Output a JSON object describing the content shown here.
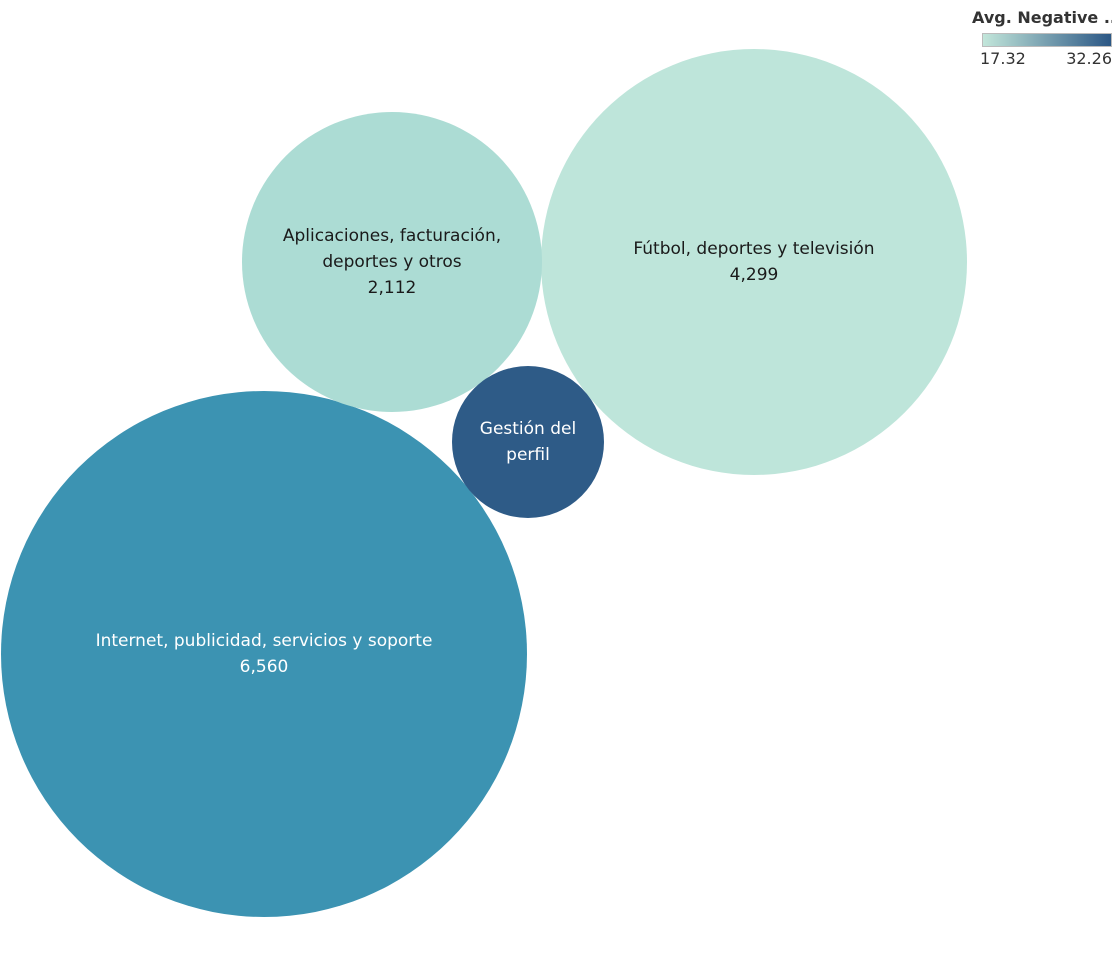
{
  "legend": {
    "title": "Avg. Negative ..",
    "min_label": "17.32",
    "max_label": "32.26",
    "min_color": "#c2e6da",
    "max_color": "#2b5785"
  },
  "chart_data": {
    "type": "bubble",
    "color_measure": "Avg. Negative ..",
    "color_range": [
      17.32,
      32.26
    ],
    "bubbles": [
      {
        "name_lines": [
          "Internet, publicidad, servicios y soporte"
        ],
        "value": 6560,
        "value_label": "6,560",
        "color": "#3c93b2",
        "text_color": "#ffffff"
      },
      {
        "name_lines": [
          "Fútbol, deportes y televisión"
        ],
        "value": 4299,
        "value_label": "4,299",
        "color": "#bee5da",
        "text_color": "#1a1a1a"
      },
      {
        "name_lines": [
          "Aplicaciones, facturación,",
          "deportes y otros"
        ],
        "value": 2112,
        "value_label": "2,112",
        "color": "#acdcd4",
        "text_color": "#1a1a1a"
      },
      {
        "name_lines": [
          "Gestión del",
          "perfil"
        ],
        "value": null,
        "value_label": "",
        "color": "#2e5b87",
        "text_color": "#ffffff"
      }
    ]
  }
}
